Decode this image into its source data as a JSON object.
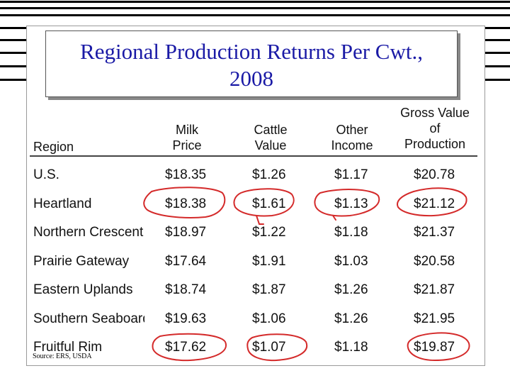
{
  "title_lines": [
    "Regional Production Returns Per Cwt.,",
    "2008"
  ],
  "headers": {
    "region": [
      "Region"
    ],
    "milk": [
      "Milk",
      "Price"
    ],
    "cattle": [
      "Cattle",
      "Value"
    ],
    "other": [
      "Other",
      "Income"
    ],
    "gross": [
      "Gross Value",
      "of",
      "Production"
    ]
  },
  "rows": [
    {
      "region": "U.S.",
      "milk": "$18.35",
      "cattle": "$1.26",
      "other": "$1.17",
      "gross": "$20.78"
    },
    {
      "region": "Heartland",
      "milk": "$18.38",
      "cattle": "$1.61",
      "other": "$1.13",
      "gross": "$21.12"
    },
    {
      "region": "Northern Crescent",
      "milk": "$18.97",
      "cattle": "$1.22",
      "other": "$1.18",
      "gross": "$21.37"
    },
    {
      "region": "Prairie Gateway",
      "milk": "$17.64",
      "cattle": "$1.91",
      "other": "$1.03",
      "gross": "$20.58"
    },
    {
      "region": "Eastern Uplands",
      "milk": "$18.74",
      "cattle": "$1.87",
      "other": "$1.26",
      "gross": "$21.87"
    },
    {
      "region": "Southern Seaboard",
      "milk": "$19.63",
      "cattle": "$1.06",
      "other": "$1.26",
      "gross": "$21.95"
    },
    {
      "region": "Fruitful Rim",
      "milk": "$17.62",
      "cattle": "$1.07",
      "other": "$1.18",
      "gross": "$19.87"
    }
  ],
  "source": "Source: ERS, USDA",
  "annotation_color": "#d42a2a"
}
